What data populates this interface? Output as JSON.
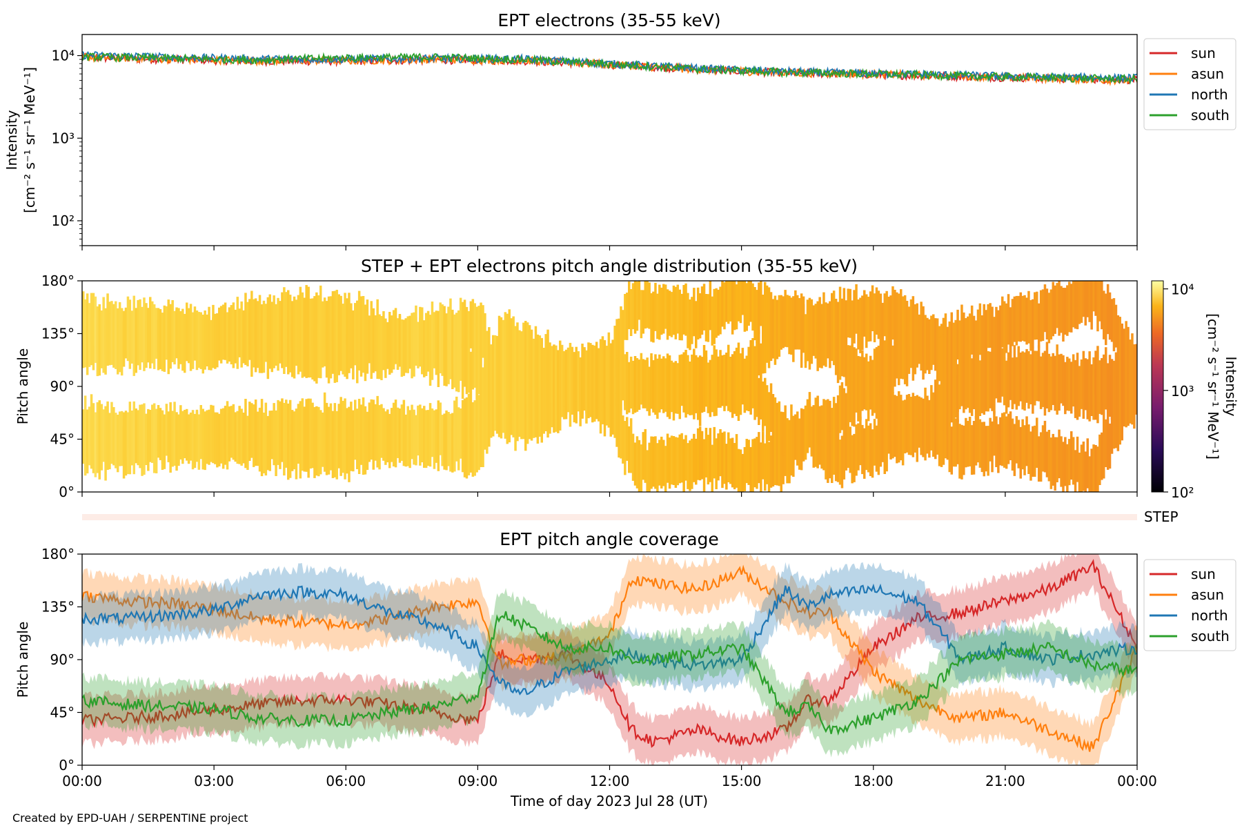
{
  "chart_data": [
    {
      "type": "line",
      "title": "EPT electrons (35-55 keV)",
      "ylabel_line1": "Intensity",
      "ylabel_line2": "[cm⁻² s⁻¹ sr⁻¹ MeV⁻¹]",
      "yscale": "log",
      "ylim": [
        50,
        18000
      ],
      "yticks": [
        "10²",
        "10³",
        "10⁴"
      ],
      "xlim_hours": [
        0,
        24
      ],
      "legend_position": "outside-right-top",
      "x_hours": [
        0,
        2,
        4,
        6,
        8,
        10,
        12,
        14,
        16,
        18,
        20,
        22,
        24
      ],
      "series": [
        {
          "name": "sun",
          "color": "#d62728",
          "values": [
            9500,
            9000,
            8600,
            8600,
            8900,
            8700,
            7800,
            6800,
            6200,
            5900,
            5600,
            5300,
            5100
          ]
        },
        {
          "name": "asun",
          "color": "#ff7f0e",
          "values": [
            9600,
            9100,
            8700,
            8700,
            9000,
            8800,
            7800,
            6800,
            6200,
            6000,
            5700,
            5300,
            5000
          ]
        },
        {
          "name": "north",
          "color": "#1f77b4",
          "values": [
            10200,
            9600,
            9100,
            9100,
            9300,
            9100,
            8000,
            7000,
            6400,
            6100,
            5800,
            5500,
            5400
          ]
        },
        {
          "name": "south",
          "color": "#2ca02c",
          "values": [
            9700,
            9300,
            8900,
            9400,
            9600,
            9000,
            7900,
            6900,
            6300,
            6000,
            5700,
            5400,
            5200
          ]
        }
      ]
    },
    {
      "type": "heatmap",
      "title": "STEP + EPT electrons pitch angle distribution (35-55 keV)",
      "ylabel": "Pitch angle",
      "yticks": [
        "0°",
        "45°",
        "90°",
        "135°",
        "180°"
      ],
      "ylim": [
        0,
        180
      ],
      "xlim_hours": [
        0,
        24
      ],
      "colorbar": {
        "label_line1": "Intensity",
        "label_line2": "[cm⁻² s⁻¹ sr⁻¹ MeV⁻¹]",
        "scale": "log",
        "range": [
          100,
          12000
        ],
        "ticks": [
          "10²",
          "10³",
          "10⁴"
        ],
        "colormap": "inferno"
      },
      "x_hours": [
        0,
        2,
        4,
        6,
        8,
        10,
        12,
        14,
        16,
        18,
        20,
        22,
        24
      ],
      "intensity": [
        9500,
        9000,
        8600,
        8600,
        8900,
        8700,
        7800,
        6800,
        6200,
        5900,
        5600,
        5300,
        5100
      ]
    },
    {
      "type": "line",
      "title": "EPT pitch angle coverage",
      "ylabel": "Pitch angle",
      "yticks": [
        "0°",
        "45°",
        "90°",
        "135°",
        "180°"
      ],
      "ylim": [
        0,
        180
      ],
      "xlim_hours": [
        0,
        24
      ],
      "xlabel": "Time of day 2023 Jul 28 (UT)",
      "xticks": [
        "00:00",
        "03:00",
        "06:00",
        "09:00",
        "12:00",
        "15:00",
        "18:00",
        "21:00",
        "00:00"
      ],
      "step_label": "STEP",
      "legend_position": "outside-right-top",
      "x_hours": [
        0,
        1,
        2,
        3,
        4,
        5,
        6,
        7,
        8,
        9,
        9.5,
        10,
        11,
        12,
        12.5,
        13,
        14,
        15,
        16,
        16.5,
        17,
        18,
        19,
        20,
        21,
        22,
        23,
        24
      ],
      "series": [
        {
          "name": "sun",
          "color": "#d62728",
          "values": [
            38,
            40,
            43,
            47,
            52,
            55,
            56,
            52,
            45,
            38,
            95,
            90,
            95,
            70,
            30,
            20,
            30,
            20,
            30,
            55,
            55,
            100,
            125,
            130,
            140,
            150,
            170,
            100
          ]
        },
        {
          "name": "asun",
          "color": "#ff7f0e",
          "values": [
            145,
            140,
            138,
            133,
            125,
            122,
            120,
            125,
            135,
            140,
            85,
            90,
            92,
            110,
            160,
            155,
            150,
            165,
            140,
            130,
            130,
            80,
            55,
            40,
            45,
            30,
            15,
            100
          ]
        },
        {
          "name": "north",
          "color": "#1f77b4",
          "values": [
            125,
            125,
            128,
            132,
            145,
            148,
            145,
            130,
            120,
            100,
            70,
            60,
            80,
            90,
            95,
            90,
            85,
            90,
            150,
            135,
            145,
            150,
            140,
            90,
            100,
            90,
            95,
            100
          ]
        },
        {
          "name": "south",
          "color": "#2ca02c",
          "values": [
            55,
            52,
            50,
            48,
            40,
            38,
            38,
            45,
            50,
            60,
            130,
            120,
            100,
            100,
            90,
            90,
            95,
            100,
            45,
            50,
            30,
            40,
            55,
            90,
            95,
            100,
            85,
            80
          ]
        }
      ]
    }
  ],
  "credit": "Created by EPD-UAH / SERPENTINE project"
}
